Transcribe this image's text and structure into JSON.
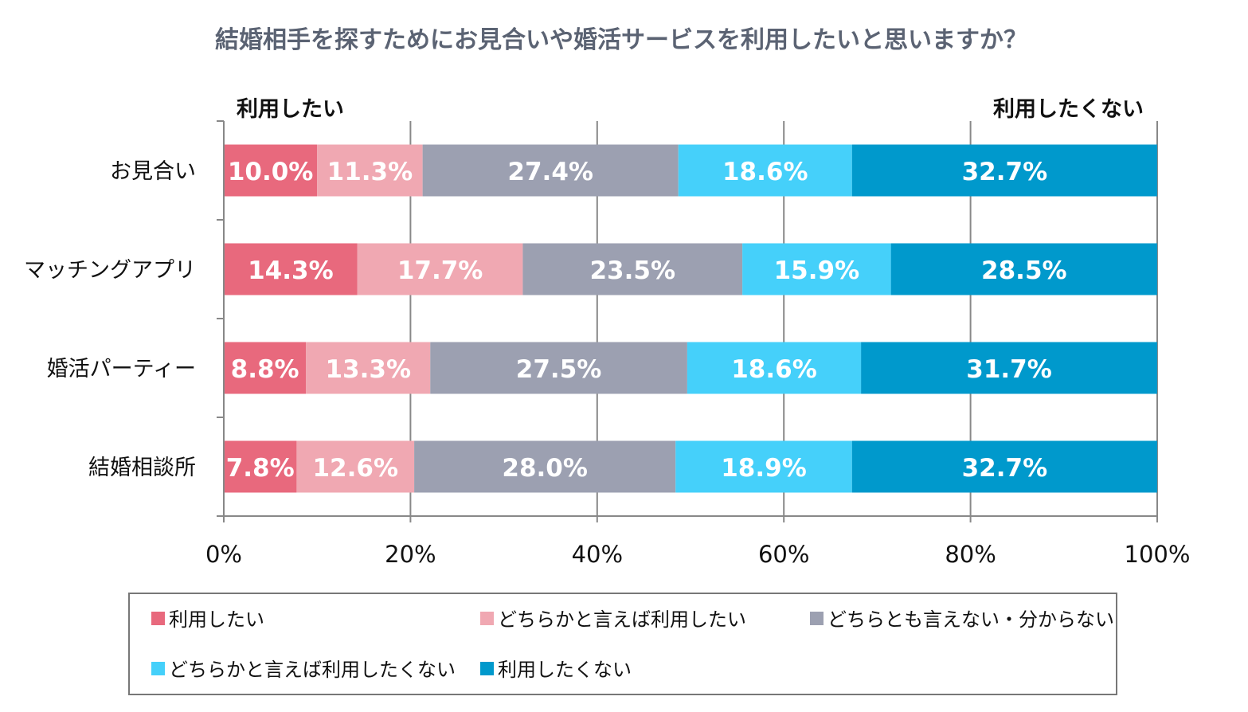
{
  "chart_data": {
    "type": "bar",
    "orientation": "horizontal",
    "stacked": "percent",
    "title": "結婚相手を探すためにお見合いや婚活サービスを利用したいと思いますか？",
    "left_annotation": "利用したい",
    "right_annotation": "利用したくない",
    "categories": [
      "お見合い",
      "マッチングアプリ",
      "婚活パーティー",
      "結婚相談所"
    ],
    "series": [
      {
        "name": "利用したい",
        "color": "#E8697D",
        "values": [
          10.0,
          14.3,
          8.8,
          7.8
        ]
      },
      {
        "name": "どちらかと言えば利用したい",
        "color": "#F0A8B2",
        "values": [
          11.3,
          17.7,
          13.3,
          12.6
        ]
      },
      {
        "name": "どちらとも言えない・分からない",
        "color": "#9CA0B1",
        "values": [
          27.4,
          23.5,
          27.5,
          28.0
        ]
      },
      {
        "name": "どちらかと言えば利用したくない",
        "color": "#45D0FA",
        "values": [
          18.6,
          15.9,
          18.6,
          18.9
        ]
      },
      {
        "name": "利用したくない",
        "color": "#0099CC",
        "values": [
          32.7,
          28.5,
          31.7,
          32.7
        ]
      }
    ],
    "xlim": [
      0,
      100
    ],
    "x_ticks": [
      "0%",
      "20%",
      "40%",
      "60%",
      "80%",
      "100%"
    ],
    "grid": "vertical",
    "legend_placement": "bottom"
  }
}
